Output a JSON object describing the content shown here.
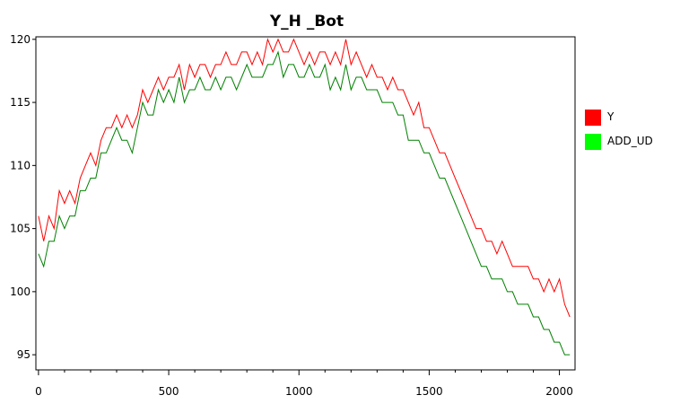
{
  "chart_data": {
    "type": "line",
    "title": "Y_H _Bot",
    "xlabel": "",
    "ylabel": "",
    "xlim": [
      -10,
      2060
    ],
    "ylim": [
      93.8,
      120.2
    ],
    "x_ticks": [
      0,
      500,
      1000,
      1500,
      2000
    ],
    "y_ticks": [
      95,
      100,
      105,
      110,
      115,
      120
    ],
    "grid": false,
    "legend_position": "right",
    "series": [
      {
        "name": "Y",
        "color": "#ff0000",
        "x": [
          0,
          20,
          40,
          60,
          80,
          100,
          120,
          140,
          160,
          180,
          200,
          220,
          240,
          260,
          280,
          300,
          320,
          340,
          360,
          380,
          400,
          420,
          440,
          460,
          480,
          500,
          520,
          540,
          560,
          580,
          600,
          620,
          640,
          660,
          680,
          700,
          720,
          740,
          760,
          780,
          800,
          820,
          840,
          860,
          880,
          900,
          920,
          940,
          960,
          980,
          1000,
          1020,
          1040,
          1060,
          1080,
          1100,
          1120,
          1140,
          1160,
          1180,
          1200,
          1220,
          1240,
          1260,
          1280,
          1300,
          1320,
          1340,
          1360,
          1380,
          1400,
          1420,
          1440,
          1460,
          1480,
          1500,
          1520,
          1540,
          1560,
          1580,
          1600,
          1620,
          1640,
          1660,
          1680,
          1700,
          1720,
          1740,
          1760,
          1780,
          1800,
          1820,
          1840,
          1860,
          1880,
          1900,
          1920,
          1940,
          1960,
          1980,
          2000,
          2020,
          2040
        ],
        "values": [
          106,
          104,
          106,
          105,
          108,
          107,
          108,
          107,
          109,
          110,
          111,
          110,
          112,
          113,
          113,
          114,
          113,
          114,
          113,
          114,
          116,
          115,
          116,
          117,
          116,
          117,
          117,
          118,
          116,
          118,
          117,
          118,
          118,
          117,
          118,
          118,
          119,
          118,
          118,
          119,
          119,
          118,
          119,
          118,
          120,
          119,
          120,
          119,
          119,
          120,
          119,
          118,
          119,
          118,
          119,
          119,
          118,
          119,
          118,
          120,
          118,
          119,
          118,
          117,
          118,
          117,
          117,
          116,
          117,
          116,
          116,
          115,
          114,
          115,
          113,
          113,
          112,
          111,
          111,
          110,
          109,
          108,
          107,
          106,
          105,
          105,
          104,
          104,
          103,
          104,
          103,
          102,
          102,
          102,
          102,
          101,
          101,
          100,
          101,
          100,
          101,
          99,
          98
        ]
      },
      {
        "name": "ADD_UD",
        "color": "#008000",
        "x": [
          0,
          20,
          40,
          60,
          80,
          100,
          120,
          140,
          160,
          180,
          200,
          220,
          240,
          260,
          280,
          300,
          320,
          340,
          360,
          380,
          400,
          420,
          440,
          460,
          480,
          500,
          520,
          540,
          560,
          580,
          600,
          620,
          640,
          660,
          680,
          700,
          720,
          740,
          760,
          780,
          800,
          820,
          840,
          860,
          880,
          900,
          920,
          940,
          960,
          980,
          1000,
          1020,
          1040,
          1060,
          1080,
          1100,
          1120,
          1140,
          1160,
          1180,
          1200,
          1220,
          1240,
          1260,
          1280,
          1300,
          1320,
          1340,
          1360,
          1380,
          1400,
          1420,
          1440,
          1460,
          1480,
          1500,
          1520,
          1540,
          1560,
          1580,
          1600,
          1620,
          1640,
          1660,
          1680,
          1700,
          1720,
          1740,
          1760,
          1780,
          1800,
          1820,
          1840,
          1860,
          1880,
          1900,
          1920,
          1940,
          1960,
          1980,
          2000,
          2020,
          2040
        ],
        "values": [
          103,
          102,
          104,
          104,
          106,
          105,
          106,
          106,
          108,
          108,
          109,
          109,
          111,
          111,
          112,
          113,
          112,
          112,
          111,
          113,
          115,
          114,
          114,
          116,
          115,
          116,
          115,
          117,
          115,
          116,
          116,
          117,
          116,
          116,
          117,
          116,
          117,
          117,
          116,
          117,
          118,
          117,
          117,
          117,
          118,
          118,
          119,
          117,
          118,
          118,
          117,
          117,
          118,
          117,
          117,
          118,
          116,
          117,
          116,
          118,
          116,
          117,
          117,
          116,
          116,
          116,
          115,
          115,
          115,
          114,
          114,
          112,
          112,
          112,
          111,
          111,
          110,
          109,
          109,
          108,
          107,
          106,
          105,
          104,
          103,
          102,
          102,
          101,
          101,
          101,
          100,
          100,
          99,
          99,
          99,
          98,
          98,
          97,
          97,
          96,
          96,
          95,
          95
        ]
      }
    ]
  }
}
